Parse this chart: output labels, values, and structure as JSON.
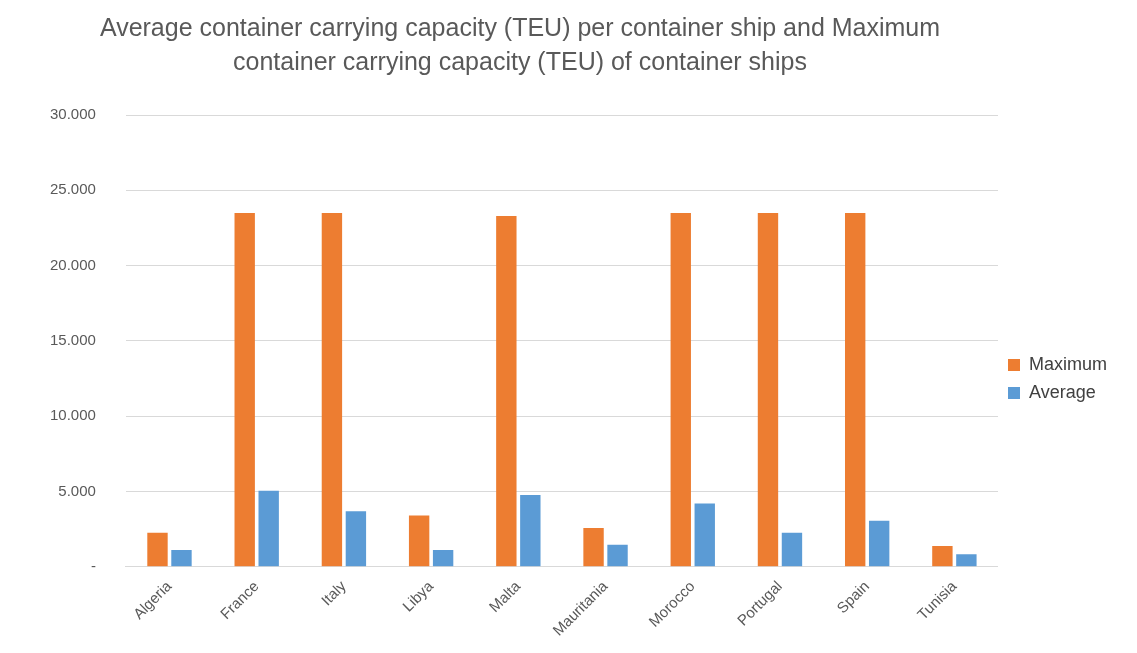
{
  "chart_data": {
    "type": "bar",
    "title": "Average container carrying capacity (TEU) per container ship and Maximum container carrying capacity (TEU) of container ships",
    "categories": [
      "Algeria",
      "France",
      "Italy",
      "Libya",
      "Malta",
      "Mauritania",
      "Morocco",
      "Portugal",
      "Spain",
      "Tunisia"
    ],
    "series": [
      {
        "name": "Maximum",
        "color": "#ed7d31",
        "values": [
          2250,
          23500,
          23500,
          3400,
          23300,
          2580,
          23500,
          23500,
          23500,
          1380
        ]
      },
      {
        "name": "Average",
        "color": "#5b9bd5",
        "values": [
          1120,
          5050,
          3690,
          1120,
          4760,
          1460,
          4200,
          2250,
          3060,
          830
        ]
      }
    ],
    "ylim": [
      0,
      30000
    ],
    "yticks": [
      {
        "value": 0,
        "label": "-"
      },
      {
        "value": 5000,
        "label": "5.000"
      },
      {
        "value": 10000,
        "label": "10.000"
      },
      {
        "value": 15000,
        "label": "15.000"
      },
      {
        "value": 20000,
        "label": "20.000"
      },
      {
        "value": 25000,
        "label": "25.000"
      },
      {
        "value": 30000,
        "label": "30.000"
      }
    ],
    "grid": "y",
    "legend": "right"
  }
}
